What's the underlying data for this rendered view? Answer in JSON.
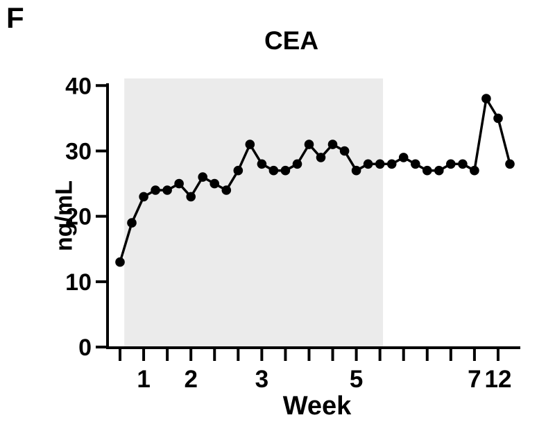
{
  "panel_label": "F",
  "chart_data": {
    "type": "line",
    "title": "CEA",
    "xlabel": "Week",
    "ylabel": "ng/mL",
    "ylim": [
      0,
      40
    ],
    "y_ticks": [
      0,
      10,
      20,
      30,
      40
    ],
    "x_axis": {
      "tick_count": 17,
      "labeled_ticks": [
        {
          "tick": 1,
          "label": "1"
        },
        {
          "tick": 3,
          "label": "2"
        },
        {
          "tick": 6,
          "label": "3"
        },
        {
          "tick": 10,
          "label": "5"
        },
        {
          "tick": 15,
          "label": "7"
        },
        {
          "tick": 16,
          "label": "12"
        }
      ]
    },
    "series": [
      {
        "name": "CEA",
        "x_start_tick": 0,
        "x_step_ticks": 0.5,
        "values": [
          13,
          19,
          23,
          24,
          24,
          25,
          23,
          26,
          25,
          24,
          27,
          31,
          28,
          27,
          27,
          28,
          31,
          29,
          31,
          30,
          27,
          28,
          28,
          28,
          29,
          28,
          27,
          27,
          28,
          28,
          27,
          38,
          35,
          28
        ]
      }
    ],
    "shaded_region": {
      "from_tick": 0.18,
      "to_tick": 11.13,
      "color": "#ebebeb"
    },
    "line_color": "#000000",
    "marker_color": "#000000",
    "grid": "off",
    "legend": "none"
  }
}
